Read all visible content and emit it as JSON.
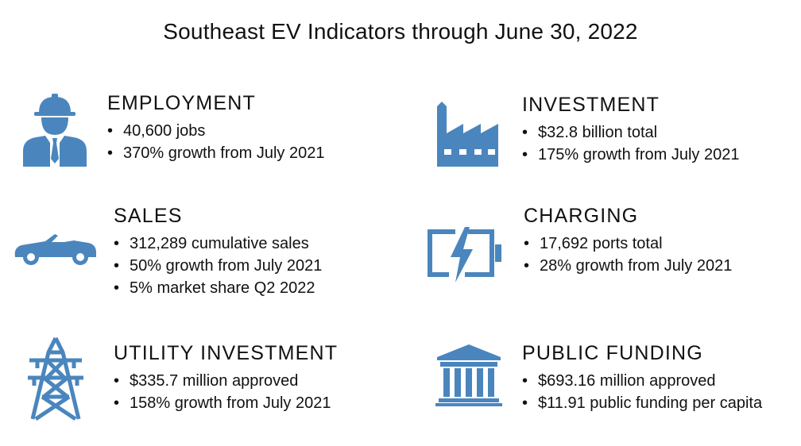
{
  "title": "Southeast EV Indicators through June 30, 2022",
  "colors": {
    "icon": "#4a86bd",
    "text": "#111111"
  },
  "sections": {
    "employment": {
      "icon": "worker-icon",
      "heading": "EMPLOYMENT",
      "items": [
        "40,600 jobs",
        "370% growth from July 2021"
      ]
    },
    "investment": {
      "icon": "factory-icon",
      "heading": "INVESTMENT",
      "items": [
        "$32.8 billion total",
        "175% growth from July 2021"
      ]
    },
    "sales": {
      "icon": "car-icon",
      "heading": "SALES",
      "items": [
        "312,289 cumulative sales",
        "50% growth from July 2021",
        "5% market share Q2 2022"
      ]
    },
    "charging": {
      "icon": "battery-charging-icon",
      "heading": "CHARGING",
      "items": [
        "17,692 ports total",
        "28% growth from July 2021"
      ]
    },
    "utility": {
      "icon": "power-tower-icon",
      "heading": "UTILITY INVESTMENT",
      "items": [
        "$335.7 million approved",
        "158% growth from July 2021"
      ]
    },
    "public": {
      "icon": "bank-building-icon",
      "heading": "PUBLIC FUNDING",
      "items": [
        "$693.16 million approved",
        "$11.91 public funding per capita"
      ]
    }
  }
}
